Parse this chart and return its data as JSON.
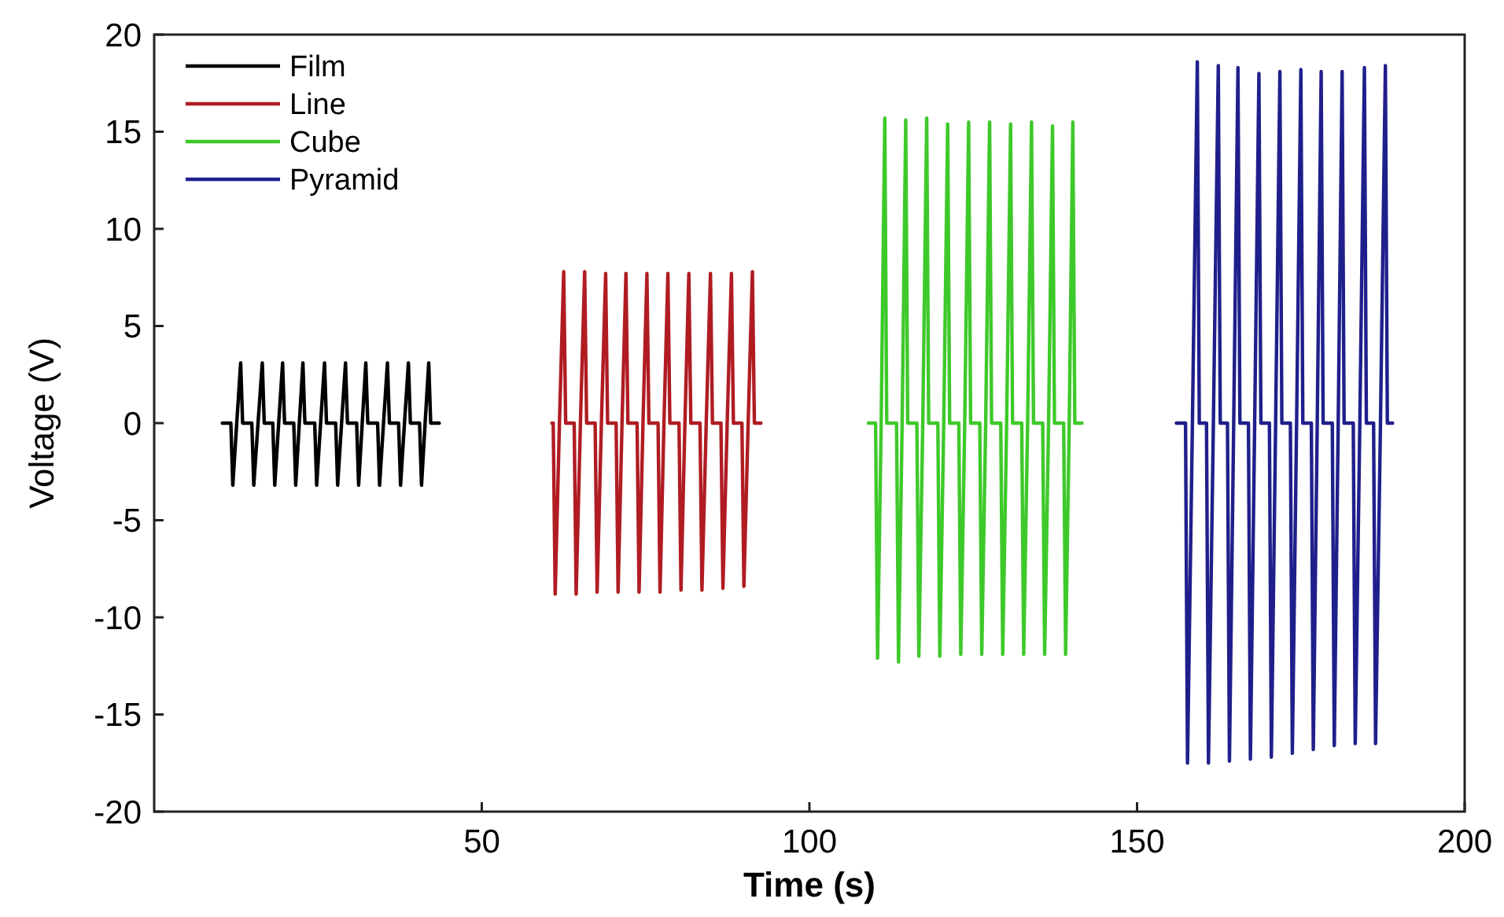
{
  "chart_data": {
    "type": "line",
    "xlabel": "Time (s)",
    "ylabel": "Voltage (V)",
    "xlim": [
      0,
      200
    ],
    "ylim": [
      -20,
      20
    ],
    "xticks": [
      50,
      100,
      150,
      200
    ],
    "yticks": [
      -20,
      -15,
      -10,
      -5,
      0,
      5,
      10,
      15,
      20
    ],
    "grid": false,
    "legend": "top left",
    "marker": "none",
    "line_style": "solid",
    "series": [
      {
        "name": "Film",
        "color": "#000000",
        "x": [
          10.4,
          11.7,
          12.0,
          12.6,
          13.2,
          13.5,
          14.9,
          15.2,
          15.85,
          16.5,
          16.8,
          18.1,
          18.4,
          19.0,
          19.6,
          19.9,
          21.3,
          21.6,
          22.15,
          22.7,
          23.0,
          24.5,
          24.8,
          25.4,
          26.0,
          26.3,
          27.7,
          28.0,
          28.6,
          29.2,
          29.5,
          30.9,
          31.2,
          31.75,
          32.3,
          32.6,
          34.1,
          34.4,
          35.0,
          35.6,
          35.9,
          37.3,
          37.6,
          38.2,
          38.8,
          39.1,
          40.5,
          40.8,
          41.35,
          41.9,
          42.2,
          43.5
        ],
        "values": [
          0,
          0,
          -3.2,
          0,
          3.1,
          0,
          0,
          -3.2,
          0,
          3.1,
          0,
          0,
          -3.2,
          0,
          3.1,
          0,
          0,
          -3.2,
          0,
          3.1,
          0,
          0,
          -3.2,
          0,
          3.1,
          0,
          0,
          -3.2,
          0,
          3.1,
          0,
          0,
          -3.2,
          0,
          3.1,
          0,
          0,
          -3.2,
          0,
          3.1,
          0,
          0,
          -3.2,
          0,
          3.1,
          0,
          0,
          -3.2,
          0,
          3.1,
          0,
          0
        ]
      },
      {
        "name": "Line",
        "color": "#b01c22",
        "x": [
          60.7,
          60.9,
          61.2,
          61.85,
          62.5,
          62.8,
          64.1,
          64.4,
          65.05,
          65.7,
          66.0,
          67.3,
          67.6,
          68.25,
          68.9,
          69.2,
          70.5,
          70.8,
          71.4,
          72.0,
          72.3,
          73.7,
          74.0,
          74.6,
          75.2,
          75.5,
          76.9,
          77.2,
          77.8,
          78.4,
          78.7,
          80.1,
          80.4,
          81.0,
          81.6,
          81.9,
          83.3,
          83.6,
          84.25,
          84.9,
          85.2,
          86.5,
          86.8,
          87.45,
          88.1,
          88.4,
          89.7,
          90.0,
          90.65,
          91.3,
          91.6,
          92.6
        ],
        "values": [
          0,
          0,
          -8.8,
          0,
          7.8,
          0,
          0,
          -8.8,
          0,
          7.8,
          0,
          0,
          -8.7,
          0,
          7.7,
          0,
          0,
          -8.7,
          0,
          7.7,
          0,
          0,
          -8.7,
          0,
          7.7,
          0,
          0,
          -8.7,
          0,
          7.7,
          0,
          0,
          -8.6,
          0,
          7.7,
          0,
          0,
          -8.6,
          0,
          7.7,
          0,
          0,
          -8.5,
          0,
          7.7,
          0,
          0,
          -8.4,
          0,
          7.8,
          0,
          0
        ]
      },
      {
        "name": "Cube",
        "color": "#3ec92a",
        "x": [
          109.0,
          110.1,
          110.4,
          110.95,
          111.5,
          111.8,
          113.3,
          113.6,
          114.15,
          114.7,
          115.0,
          116.4,
          116.7,
          117.3,
          117.9,
          118.2,
          119.6,
          119.9,
          120.5,
          121.1,
          121.4,
          122.8,
          123.1,
          123.7,
          124.3,
          124.6,
          126.0,
          126.3,
          126.9,
          127.5,
          127.8,
          129.2,
          129.5,
          130.1,
          130.7,
          131.0,
          132.4,
          132.7,
          133.3,
          133.9,
          134.2,
          135.6,
          135.9,
          136.5,
          137.1,
          137.4,
          138.8,
          139.1,
          139.65,
          140.2,
          140.5,
          141.6
        ],
        "values": [
          0,
          0,
          -12.1,
          0,
          15.7,
          0,
          0,
          -12.3,
          0,
          15.6,
          0,
          0,
          -12.0,
          0,
          15.7,
          0,
          0,
          -12.0,
          0,
          15.4,
          0,
          0,
          -11.9,
          0,
          15.5,
          0,
          0,
          -11.9,
          0,
          15.5,
          0,
          0,
          -11.9,
          0,
          15.4,
          0,
          0,
          -11.9,
          0,
          15.5,
          0,
          0,
          -11.9,
          0,
          15.3,
          0,
          0,
          -11.9,
          0,
          15.5,
          0,
          0
        ]
      },
      {
        "name": "Pyramid",
        "color": "#1f1f8c",
        "x": [
          156.0,
          157.4,
          157.7,
          158.45,
          159.2,
          159.5,
          160.6,
          160.9,
          161.65,
          162.4,
          162.7,
          163.8,
          164.1,
          164.75,
          165.4,
          165.7,
          167.0,
          167.3,
          167.95,
          168.6,
          168.9,
          170.2,
          170.5,
          171.15,
          171.8,
          172.1,
          173.4,
          173.7,
          174.35,
          175.0,
          175.3,
          176.6,
          176.9,
          177.5,
          178.1,
          178.4,
          179.8,
          180.1,
          180.7,
          181.3,
          181.6,
          183.0,
          183.3,
          184.0,
          184.7,
          185.0,
          186.1,
          186.4,
          187.15,
          187.9,
          188.2,
          189.0
        ],
        "values": [
          0,
          0,
          -17.5,
          0,
          18.6,
          0,
          0,
          -17.5,
          0,
          18.4,
          0,
          0,
          -17.4,
          0,
          18.3,
          0,
          0,
          -17.3,
          0,
          18.0,
          0,
          0,
          -17.2,
          0,
          18.1,
          0,
          0,
          -17.0,
          0,
          18.2,
          0,
          0,
          -16.8,
          0,
          18.1,
          0,
          0,
          -16.6,
          0,
          18.1,
          0,
          0,
          -16.5,
          0,
          18.3,
          0,
          0,
          -16.5,
          0,
          18.4,
          0,
          0
        ]
      }
    ]
  }
}
